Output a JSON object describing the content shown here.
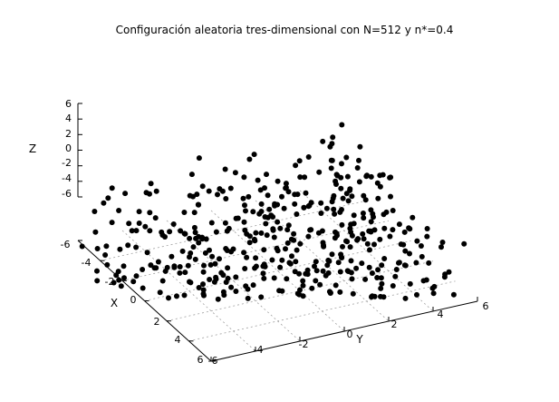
{
  "chart_data": {
    "type": "scatter3d",
    "title": "Configuración aleatoria tres-dimensional con N=512 y n*=0.4",
    "xlabel": "X",
    "ylabel": "Y",
    "zlabel": "Z",
    "xlim": [
      -6,
      6
    ],
    "ylim": [
      -6,
      6
    ],
    "zlim": [
      -6,
      6
    ],
    "x_ticks": [
      "-4",
      "-2",
      "0",
      "2",
      "4",
      "6"
    ],
    "y_ticks": [
      "-4",
      "-2",
      "0",
      "2",
      "4",
      "6"
    ],
    "z_ticks": [
      "6",
      "4",
      "2",
      "0",
      "-2",
      "-4",
      "-6"
    ],
    "x_corner_tick": "-6",
    "base_corner_tick": "-6",
    "grid": true,
    "series": [
      {
        "marker": "filled-circle",
        "color": "#000000",
        "n": 512,
        "rho": 0.4
      }
    ]
  }
}
